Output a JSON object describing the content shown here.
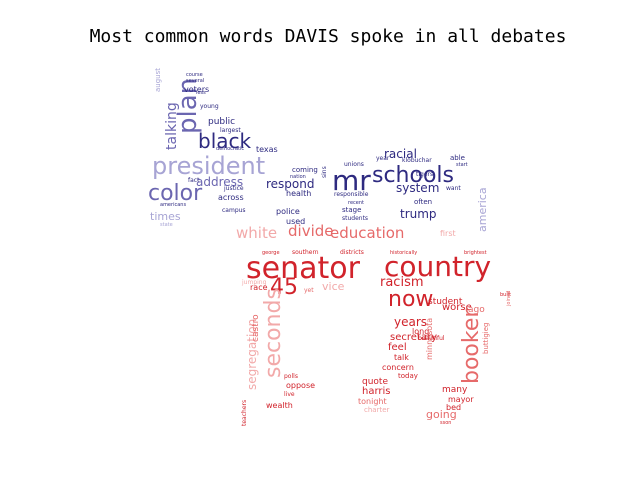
{
  "title": "Most common words DAVIS spoke in all debates",
  "colors": {
    "blue_dark": "#2e2a80",
    "blue_mid": "#6b66b0",
    "blue_light": "#a7a4d4",
    "red_dark": "#d1232b",
    "red_mid": "#e66a6a",
    "red_light": "#f2a9a9"
  },
  "words": [
    {
      "text": "senator",
      "tone": "red_dark"
    },
    {
      "text": "country",
      "tone": "red_dark"
    },
    {
      "text": "now",
      "tone": "red_dark"
    },
    {
      "text": "45",
      "tone": "red_dark"
    },
    {
      "text": "booker",
      "tone": "red_mid"
    },
    {
      "text": "seconds",
      "tone": "red_light"
    },
    {
      "text": "education",
      "tone": "red_mid"
    },
    {
      "text": "divide",
      "tone": "red_mid"
    },
    {
      "text": "white",
      "tone": "red_light"
    },
    {
      "text": "racism",
      "tone": "red_dark"
    },
    {
      "text": "years",
      "tone": "red_dark"
    },
    {
      "text": "vice",
      "tone": "red_light"
    },
    {
      "text": "segregation",
      "tone": "red_light"
    },
    {
      "text": "castro",
      "tone": "red_mid"
    },
    {
      "text": "going",
      "tone": "red_mid"
    },
    {
      "text": "secretary",
      "tone": "red_dark"
    },
    {
      "text": "feel",
      "tone": "red_dark"
    },
    {
      "text": "harris",
      "tone": "red_dark"
    },
    {
      "text": "quote",
      "tone": "red_dark"
    },
    {
      "text": "concern",
      "tone": "red_dark"
    },
    {
      "text": "talk",
      "tone": "red_dark"
    },
    {
      "text": "many",
      "tone": "red_dark"
    },
    {
      "text": "mayor",
      "tone": "red_dark"
    },
    {
      "text": "bed",
      "tone": "red_dark"
    },
    {
      "text": "worse",
      "tone": "red_dark"
    },
    {
      "text": "ago",
      "tone": "red_mid"
    },
    {
      "text": "long",
      "tone": "red_dark"
    },
    {
      "text": "student",
      "tone": "red_dark"
    },
    {
      "text": "minnesota",
      "tone": "red_mid"
    },
    {
      "text": "race",
      "tone": "red_dark"
    },
    {
      "text": "oppose",
      "tone": "red_dark"
    },
    {
      "text": "wealth",
      "tone": "red_dark"
    },
    {
      "text": "tonight",
      "tone": "red_mid"
    },
    {
      "text": "charter",
      "tone": "red_light"
    },
    {
      "text": "teachers",
      "tone": "red_dark"
    },
    {
      "text": "buttigieg",
      "tone": "red_mid"
    },
    {
      "text": "jumping",
      "tone": "red_light"
    },
    {
      "text": "yet",
      "tone": "red_mid"
    },
    {
      "text": "today",
      "tone": "red_dark"
    },
    {
      "text": "beautiful",
      "tone": "red_dark"
    },
    {
      "text": "first",
      "tone": "red_light"
    },
    {
      "text": "polls",
      "tone": "red_dark"
    },
    {
      "text": "live",
      "tone": "red_dark"
    },
    {
      "text": "schools",
      "tone": "blue_dark"
    },
    {
      "text": "mr",
      "tone": "blue_dark"
    },
    {
      "text": "president",
      "tone": "blue_light"
    },
    {
      "text": "color",
      "tone": "blue_mid"
    },
    {
      "text": "black",
      "tone": "blue_dark"
    },
    {
      "text": "plan",
      "tone": "blue_mid"
    },
    {
      "text": "talking",
      "tone": "blue_mid"
    },
    {
      "text": "address",
      "tone": "blue_mid"
    },
    {
      "text": "respond",
      "tone": "blue_dark"
    },
    {
      "text": "racial",
      "tone": "blue_dark"
    },
    {
      "text": "system",
      "tone": "blue_dark"
    },
    {
      "text": "trump",
      "tone": "blue_dark"
    },
    {
      "text": "america",
      "tone": "blue_light"
    },
    {
      "text": "times",
      "tone": "blue_light"
    },
    {
      "text": "public",
      "tone": "blue_dark"
    },
    {
      "text": "voters",
      "tone": "blue_dark"
    },
    {
      "text": "coming",
      "tone": "blue_dark"
    },
    {
      "text": "health",
      "tone": "blue_dark"
    },
    {
      "text": "police",
      "tone": "blue_dark"
    },
    {
      "text": "used",
      "tone": "blue_dark"
    },
    {
      "text": "stage",
      "tone": "blue_dark"
    },
    {
      "text": "students",
      "tone": "blue_dark"
    },
    {
      "text": "unions",
      "tone": "blue_dark"
    },
    {
      "text": "year",
      "tone": "blue_dark"
    },
    {
      "text": "able",
      "tone": "blue_dark"
    },
    {
      "text": "often",
      "tone": "blue_dark"
    },
    {
      "text": "want",
      "tone": "blue_dark"
    },
    {
      "text": "across",
      "tone": "blue_dark"
    },
    {
      "text": "justice",
      "tone": "blue_dark"
    },
    {
      "text": "campus",
      "tone": "blue_dark"
    },
    {
      "text": "americans",
      "tone": "blue_dark"
    },
    {
      "text": "texas",
      "tone": "blue_dark"
    },
    {
      "text": "fact",
      "tone": "blue_dark"
    },
    {
      "text": "largest",
      "tone": "blue_dark"
    },
    {
      "text": "young",
      "tone": "blue_dark"
    },
    {
      "text": "less",
      "tone": "blue_dark"
    },
    {
      "text": "course",
      "tone": "blue_dark"
    },
    {
      "text": "several",
      "tone": "blue_dark"
    },
    {
      "text": "august",
      "tone": "blue_light"
    },
    {
      "text": "responsible",
      "tone": "blue_dark"
    },
    {
      "text": "klobuchar",
      "tone": "blue_dark"
    },
    {
      "text": "tigers",
      "tone": "blue_dark"
    },
    {
      "text": "recent",
      "tone": "blue_dark"
    },
    {
      "text": "start",
      "tone": "blue_dark"
    },
    {
      "text": "democratic",
      "tone": "blue_dark"
    },
    {
      "text": "nation",
      "tone": "blue_dark"
    },
    {
      "text": "sins",
      "tone": "blue_dark"
    },
    {
      "text": "state",
      "tone": "blue_light"
    },
    {
      "text": "southern",
      "tone": "red_dark"
    },
    {
      "text": "districts",
      "tone": "red_dark"
    },
    {
      "text": "historically",
      "tone": "red_dark"
    },
    {
      "text": "brightest",
      "tone": "red_dark"
    },
    {
      "text": "george",
      "tone": "red_dark"
    },
    {
      "text": "joined",
      "tone": "red_mid"
    },
    {
      "text": "built",
      "tone": "red_dark"
    },
    {
      "text": "sson",
      "tone": "red_dark"
    }
  ]
}
